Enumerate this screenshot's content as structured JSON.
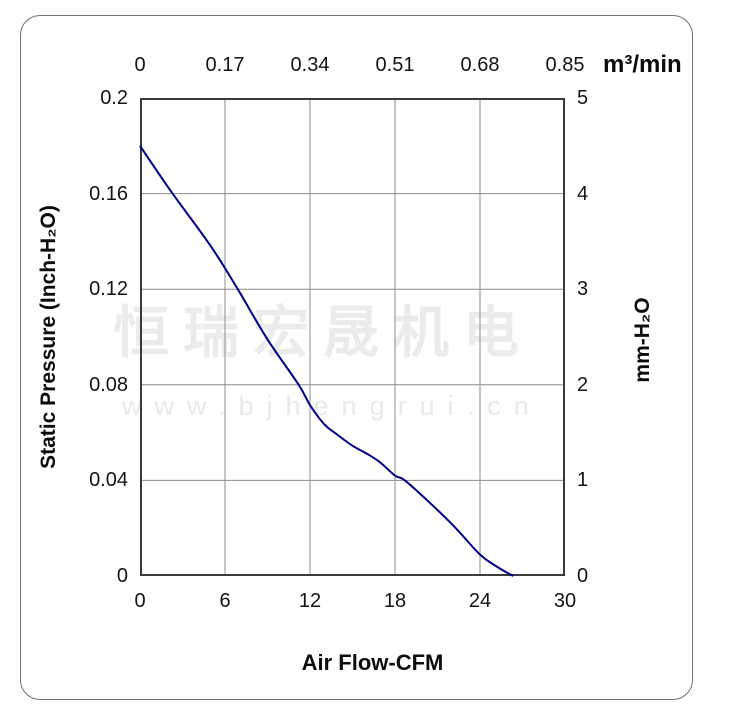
{
  "watermark": {
    "line1": "恒瑞宏晟机电",
    "line2": "www.bjhengrui.cn",
    "color": "#ebebeb"
  },
  "chart_data": {
    "type": "line",
    "title": "",
    "grid": true,
    "axes": {
      "top": {
        "label": "m³/min",
        "tick_labels": [
          "0",
          "0.17",
          "0.34",
          "0.51",
          "0.68",
          "0.85"
        ],
        "range": [
          0,
          0.85
        ]
      },
      "bottom": {
        "label": "Air Flow-CFM",
        "tick_labels": [
          "0",
          "6",
          "12",
          "18",
          "24",
          "30"
        ],
        "range": [
          0,
          30
        ]
      },
      "left": {
        "label": "Static Pressure (Inch-H₂O)",
        "tick_labels": [
          "0.2",
          "0.16",
          "0.12",
          "0.08",
          "0.04",
          "0"
        ],
        "range": [
          0.2,
          0
        ]
      },
      "right": {
        "label": "mm-H₂O",
        "tick_labels": [
          "5",
          "4",
          "3",
          "2",
          "1",
          "0"
        ],
        "range": [
          5,
          0
        ]
      }
    },
    "series": [
      {
        "name": "fan-static-pressure-curve",
        "color": "#00008B",
        "x_unit": "CFM",
        "y_unit": "Inch-H2O",
        "points": [
          [
            0.0,
            0.18
          ],
          [
            2.3,
            0.16
          ],
          [
            5.0,
            0.138
          ],
          [
            6.9,
            0.12
          ],
          [
            9.0,
            0.099
          ],
          [
            11.2,
            0.08
          ],
          [
            12.0,
            0.0715
          ],
          [
            13.0,
            0.0635
          ],
          [
            13.8,
            0.0597
          ],
          [
            15.0,
            0.0545
          ],
          [
            16.0,
            0.0512
          ],
          [
            16.9,
            0.0478
          ],
          [
            18.0,
            0.042
          ],
          [
            18.7,
            0.04
          ],
          [
            20.5,
            0.0304
          ],
          [
            22.2,
            0.0206
          ],
          [
            24.0,
            0.009
          ],
          [
            25.3,
            0.0035
          ],
          [
            26.35,
            0.0
          ]
        ]
      }
    ],
    "colors": {
      "curve": "#00008B",
      "grid": "#8c8c8c",
      "plot_border": "#3a3a3a",
      "frame_border": "#717171",
      "watermark": "#ebebeb"
    },
    "x_range_cfm": [
      0,
      30
    ],
    "y_range_inch_h2o": [
      0,
      0.2
    ]
  }
}
